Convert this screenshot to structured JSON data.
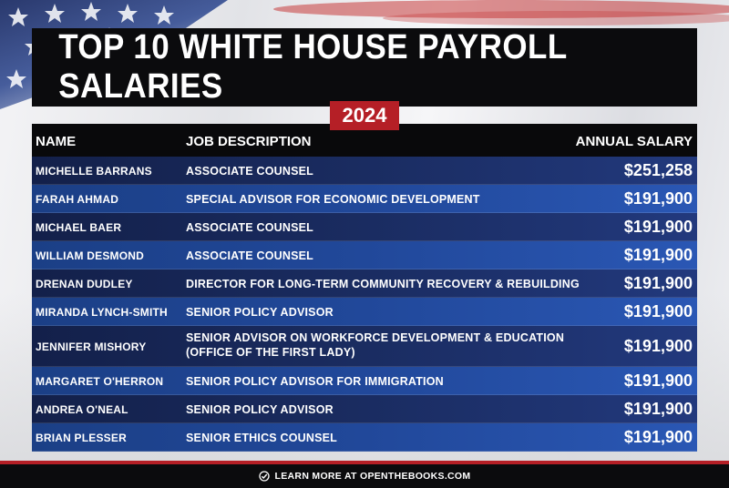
{
  "title": "TOP 10 WHITE HOUSE PAYROLL SALARIES",
  "year": "2024",
  "columns": {
    "name": "NAME",
    "job": "JOB DESCRIPTION",
    "salary": "ANNUAL SALARY"
  },
  "rows": [
    {
      "name": "MICHELLE BARRANS",
      "job": "ASSOCIATE COUNSEL",
      "job2": "",
      "salary": "$251,258"
    },
    {
      "name": "FARAH AHMAD",
      "job": "SPECIAL ADVISOR FOR ECONOMIC DEVELOPMENT",
      "job2": "",
      "salary": "$191,900"
    },
    {
      "name": "MICHAEL BAER",
      "job": "ASSOCIATE COUNSEL",
      "job2": "",
      "salary": "$191,900"
    },
    {
      "name": "WILLIAM DESMOND",
      "job": "ASSOCIATE COUNSEL",
      "job2": "",
      "salary": "$191,900"
    },
    {
      "name": "DRENAN DUDLEY",
      "job": "DIRECTOR FOR LONG-TERM COMMUNITY RECOVERY & REBUILDING",
      "job2": "",
      "salary": "$191,900"
    },
    {
      "name": "MIRANDA LYNCH-SMITH",
      "job": "SENIOR POLICY ADVISOR",
      "job2": "",
      "salary": "$191,900"
    },
    {
      "name": "JENNIFER MISHORY",
      "job": "SENIOR ADVISOR ON WORKFORCE DEVELOPMENT & EDUCATION",
      "job2": "(OFFICE OF THE FIRST LADY)",
      "salary": "$191,900"
    },
    {
      "name": "MARGARET O'HERRON",
      "job": "SENIOR POLICY ADVISOR FOR IMMIGRATION",
      "job2": "",
      "salary": "$191,900"
    },
    {
      "name": "ANDREA O'NEAL",
      "job": "SENIOR POLICY ADVISOR",
      "job2": "",
      "salary": "$191,900"
    },
    {
      "name": "BRIAN PLESSER",
      "job": "SENIOR ETHICS COUNSEL",
      "job2": "",
      "salary": "$191,900"
    }
  ],
  "footer": {
    "text": "LEARN MORE AT OPENTHEBOOKS.COM",
    "icon": "check-badge-icon"
  },
  "colors": {
    "accent_red": "#b51f26",
    "row_blue_light": "#21489a",
    "row_blue_dark": "#1a2c61"
  }
}
